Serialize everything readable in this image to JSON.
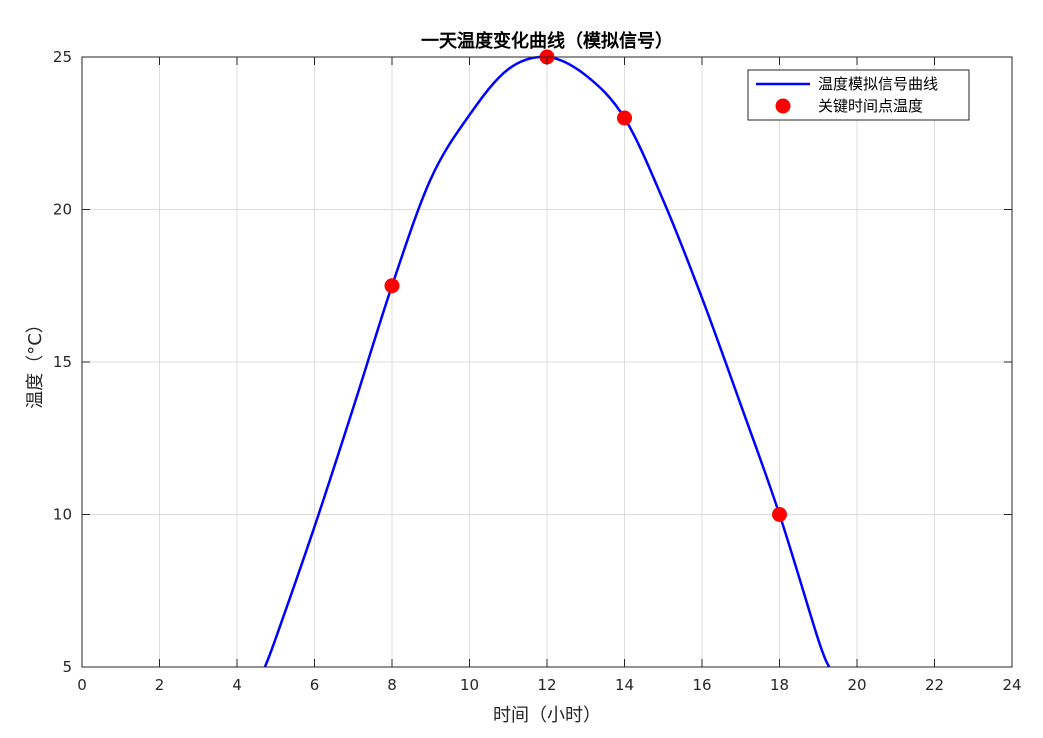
{
  "chart_data": {
    "type": "line",
    "title": "一天温度变化曲线（模拟信号）",
    "xlabel": "时间（小时）",
    "ylabel": "温度（°C）",
    "xlim": [
      0,
      24
    ],
    "ylim": [
      5,
      25
    ],
    "xticks": [
      0,
      2,
      4,
      6,
      8,
      10,
      12,
      14,
      16,
      18,
      20,
      22,
      24
    ],
    "yticks": [
      5,
      10,
      15,
      20,
      25
    ],
    "grid": true,
    "legend_position": "top-right",
    "series": [
      {
        "name": "温度模拟信号曲线",
        "kind": "line",
        "color": "#0000ff",
        "x": [
          4.72,
          5,
          6,
          7,
          8,
          9,
          10,
          11,
          12,
          13,
          14,
          15,
          16,
          17,
          18,
          19,
          19.28
        ],
        "y": [
          5.0,
          5.94,
          9.6,
          13.5,
          17.5,
          21.0,
          23.1,
          24.6,
          25.0,
          24.4,
          23.0,
          20.3,
          17.1,
          13.6,
          10.0,
          5.9,
          5.0
        ]
      },
      {
        "name": "关键时间点温度",
        "kind": "scatter",
        "color": "#ff0000",
        "x": [
          8,
          12,
          14,
          18
        ],
        "y": [
          17.5,
          25,
          23,
          10
        ]
      }
    ]
  }
}
